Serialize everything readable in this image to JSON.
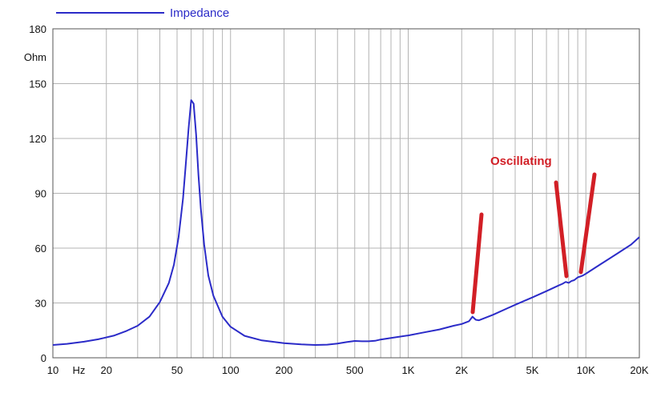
{
  "chart_data": {
    "type": "line",
    "title": "",
    "xlabel": "",
    "ylabel": "Ohm",
    "x_scale": "log",
    "xlim": [
      10,
      20000
    ],
    "ylim": [
      0,
      180
    ],
    "grid": true,
    "legend": {
      "placement": "top-left",
      "entries": [
        {
          "name": "Impedance",
          "color": "#2b2bc8"
        }
      ]
    },
    "x_ticks": [
      {
        "value": 10,
        "label": "10"
      },
      {
        "value": 14,
        "label": "Hz"
      },
      {
        "value": 20,
        "label": "20"
      },
      {
        "value": 50,
        "label": "50"
      },
      {
        "value": 100,
        "label": "100"
      },
      {
        "value": 200,
        "label": "200"
      },
      {
        "value": 500,
        "label": "500"
      },
      {
        "value": 1000,
        "label": "1K"
      },
      {
        "value": 2000,
        "label": "2K"
      },
      {
        "value": 5000,
        "label": "5K"
      },
      {
        "value": 10000,
        "label": "10K"
      },
      {
        "value": 20000,
        "label": "20K"
      }
    ],
    "y_ticks": [
      0,
      30,
      60,
      90,
      120,
      150,
      180
    ],
    "series": [
      {
        "name": "Impedance",
        "color": "#2b2bc8",
        "x": [
          10,
          12,
          15,
          18,
          22,
          26,
          30,
          35,
          40,
          45,
          48,
          51,
          54,
          56,
          58,
          60,
          62,
          64,
          66,
          68,
          71,
          75,
          80,
          90,
          100,
          120,
          150,
          200,
          250,
          300,
          350,
          400,
          450,
          500,
          550,
          600,
          650,
          700,
          800,
          1000,
          1200,
          1500,
          1800,
          2000,
          2200,
          2300,
          2400,
          2500,
          3000,
          4000,
          5000,
          6000,
          7000,
          7400,
          7700,
          8000,
          8300,
          8600,
          9000,
          9300,
          9600,
          10000,
          12000,
          15000,
          18000,
          20000
        ],
        "y": [
          7,
          7.6,
          8.8,
          10.1,
          12.1,
          14.7,
          17.5,
          22.5,
          30.5,
          41,
          51,
          66,
          87,
          106,
          125,
          141,
          139,
          122,
          100,
          82,
          62,
          45,
          34,
          22.5,
          17,
          12,
          9.5,
          8,
          7.3,
          7,
          7.2,
          7.8,
          8.6,
          9.2,
          9,
          9,
          9.3,
          10,
          10.8,
          12.2,
          13.7,
          15.5,
          17.5,
          18.5,
          20,
          22.5,
          20.8,
          20.5,
          23.5,
          29,
          33,
          36.5,
          39.5,
          40.5,
          41.5,
          41,
          42,
          42.5,
          44,
          44.5,
          45,
          46,
          51,
          57,
          62,
          66
        ]
      }
    ],
    "annotations": [
      {
        "text": "Oscillating",
        "color": "#d21f26"
      }
    ]
  }
}
